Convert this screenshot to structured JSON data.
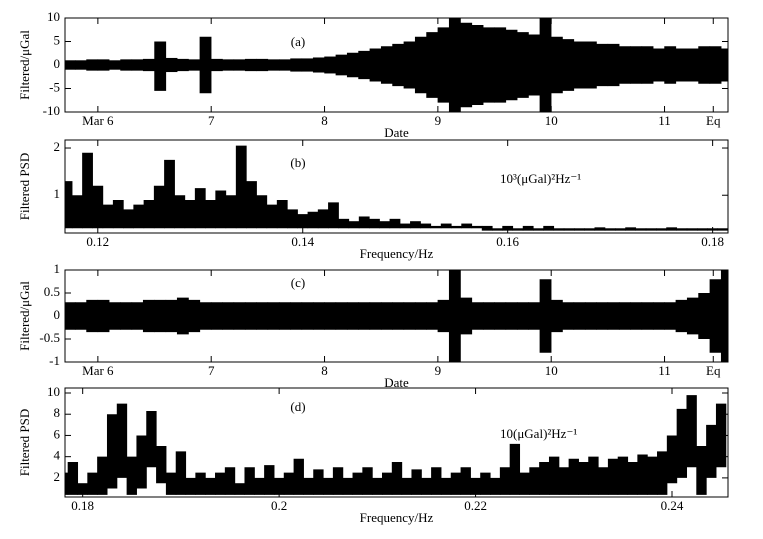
{
  "chart_data": [
    {
      "type": "band",
      "annotation": "(a)",
      "ylabel": "Filtered/μGal",
      "xlabel": "Date",
      "color": "#000000",
      "xlim": [
        5.71,
        11.56
      ],
      "ylim": [
        -10,
        10
      ],
      "yticks": [
        -10,
        -5,
        0,
        5,
        10
      ],
      "xticks": [
        {
          "value": 6,
          "label": "Mar 6"
        },
        7,
        8,
        9,
        10,
        11,
        {
          "value": 11.43,
          "label": "Eq"
        }
      ],
      "x": [
        5.75,
        5.85,
        5.95,
        6.05,
        6.15,
        6.25,
        6.35,
        6.45,
        6.55,
        6.65,
        6.75,
        6.85,
        6.95,
        7.05,
        7.15,
        7.25,
        7.35,
        7.45,
        7.55,
        7.65,
        7.75,
        7.85,
        7.95,
        8.05,
        8.15,
        8.25,
        8.35,
        8.45,
        8.55,
        8.65,
        8.75,
        8.85,
        8.95,
        9.05,
        9.15,
        9.25,
        9.35,
        9.45,
        9.55,
        9.65,
        9.75,
        9.85,
        9.95,
        10.05,
        10.15,
        10.25,
        10.35,
        10.45,
        10.55,
        10.65,
        10.75,
        10.85,
        10.95,
        11.05,
        11.15,
        11.25,
        11.35,
        11.45,
        11.55
      ],
      "upper": [
        1,
        1,
        1.2,
        1.2,
        1,
        1.2,
        1.2,
        1.3,
        5,
        1.5,
        1.3,
        1.2,
        6,
        1.3,
        1.2,
        1.2,
        1.3,
        1.3,
        1.2,
        1.2,
        1.4,
        1.4,
        1.6,
        1.8,
        2.2,
        2.6,
        3,
        3.5,
        4,
        4.5,
        5,
        6,
        7,
        8,
        10,
        9,
        8.5,
        8,
        8,
        7.5,
        7,
        6.5,
        10,
        6,
        5.5,
        5,
        5,
        4.5,
        4.5,
        4,
        4,
        4,
        3.5,
        4,
        3.5,
        3.5,
        4,
        4,
        3.5
      ],
      "lower": [
        -1,
        -1,
        -1.2,
        -1.2,
        -1,
        -1.2,
        -1.2,
        -1.3,
        -5.5,
        -1.5,
        -1.3,
        -1.2,
        -6,
        -1.3,
        -1.2,
        -1.2,
        -1.3,
        -1.3,
        -1.2,
        -1.2,
        -1.4,
        -1.4,
        -1.6,
        -1.8,
        -2.2,
        -2.6,
        -3,
        -3.5,
        -4,
        -4.5,
        -5,
        -6,
        -7,
        -8,
        -10,
        -9,
        -8.5,
        -8,
        -8,
        -7.5,
        -7,
        -6.5,
        -10,
        -6,
        -5.5,
        -5,
        -5,
        -4.5,
        -4.5,
        -4,
        -4,
        -4,
        -3.5,
        -4,
        -3.5,
        -3.5,
        -4,
        -4,
        -3.5
      ]
    },
    {
      "type": "band",
      "annotation": "(b)",
      "unit_label": "10³(μGal)²Hz⁻¹",
      "ylabel": "Filtered PSD",
      "xlabel": "Frequency/Hz",
      "color": "#000000",
      "xlim": [
        0.1168,
        0.1815
      ],
      "ylim": [
        0.2,
        2.17
      ],
      "yticks": [
        1,
        2
      ],
      "xticks": [
        0.12,
        0.14,
        0.16,
        0.18
      ],
      "x": [
        0.117,
        0.118,
        0.119,
        0.12,
        0.121,
        0.122,
        0.123,
        0.124,
        0.125,
        0.126,
        0.127,
        0.128,
        0.129,
        0.13,
        0.131,
        0.132,
        0.133,
        0.134,
        0.135,
        0.136,
        0.137,
        0.138,
        0.139,
        0.14,
        0.141,
        0.142,
        0.143,
        0.144,
        0.145,
        0.146,
        0.147,
        0.148,
        0.149,
        0.15,
        0.151,
        0.152,
        0.153,
        0.154,
        0.155,
        0.156,
        0.157,
        0.158,
        0.159,
        0.16,
        0.161,
        0.162,
        0.163,
        0.164,
        0.165,
        0.166,
        0.167,
        0.168,
        0.169,
        0.17,
        0.171,
        0.172,
        0.173,
        0.174,
        0.175,
        0.176,
        0.177,
        0.178,
        0.179,
        0.18,
        0.181
      ],
      "upper": [
        1.3,
        1.0,
        1.9,
        1.2,
        0.8,
        0.9,
        0.7,
        0.8,
        0.9,
        1.2,
        1.75,
        1.0,
        0.9,
        1.15,
        0.9,
        1.1,
        1.0,
        2.05,
        1.3,
        1.0,
        0.8,
        0.9,
        0.7,
        0.6,
        0.65,
        0.7,
        0.85,
        0.5,
        0.45,
        0.55,
        0.5,
        0.45,
        0.5,
        0.4,
        0.45,
        0.4,
        0.35,
        0.4,
        0.35,
        0.4,
        0.35,
        0.35,
        0.3,
        0.35,
        0.3,
        0.35,
        0.3,
        0.35,
        0.3,
        0.3,
        0.3,
        0.3,
        0.32,
        0.3,
        0.3,
        0.32,
        0.3,
        0.3,
        0.3,
        0.32,
        0.3,
        0.3,
        0.3,
        0.3,
        0.3
      ],
      "lower": [
        0.3,
        0.3,
        0.3,
        0.3,
        0.3,
        0.3,
        0.3,
        0.3,
        0.3,
        0.3,
        0.3,
        0.3,
        0.3,
        0.3,
        0.3,
        0.3,
        0.3,
        0.3,
        0.3,
        0.3,
        0.3,
        0.3,
        0.3,
        0.3,
        0.3,
        0.3,
        0.3,
        0.3,
        0.3,
        0.3,
        0.3,
        0.3,
        0.3,
        0.3,
        0.3,
        0.3,
        0.3,
        0.3,
        0.3,
        0.3,
        0.3,
        0.25,
        0.25,
        0.25,
        0.25,
        0.25,
        0.25,
        0.25,
        0.25,
        0.25,
        0.25,
        0.25,
        0.25,
        0.25,
        0.25,
        0.25,
        0.25,
        0.25,
        0.25,
        0.25,
        0.25,
        0.25,
        0.25,
        0.25,
        0.25
      ]
    },
    {
      "type": "band",
      "annotation": "(c)",
      "ylabel": "Filtered/μGal",
      "xlabel": "Date",
      "color": "#000000",
      "xlim": [
        5.71,
        11.56
      ],
      "ylim": [
        -1,
        1
      ],
      "yticks": [
        -1,
        -0.5,
        0,
        0.5,
        1
      ],
      "xticks": [
        {
          "value": 6,
          "label": "Mar 6"
        },
        7,
        8,
        9,
        10,
        11,
        {
          "value": 11.43,
          "label": "Eq"
        }
      ],
      "x": [
        5.75,
        5.85,
        5.95,
        6.05,
        6.15,
        6.25,
        6.35,
        6.45,
        6.55,
        6.65,
        6.75,
        6.85,
        6.95,
        7.05,
        7.15,
        7.25,
        7.35,
        7.45,
        7.55,
        7.65,
        7.75,
        7.85,
        7.95,
        8.05,
        8.15,
        8.25,
        8.35,
        8.45,
        8.55,
        8.65,
        8.75,
        8.85,
        8.95,
        9.05,
        9.15,
        9.25,
        9.35,
        9.45,
        9.55,
        9.65,
        9.75,
        9.85,
        9.95,
        10.05,
        10.15,
        10.25,
        10.35,
        10.45,
        10.55,
        10.65,
        10.75,
        10.85,
        10.95,
        11.05,
        11.15,
        11.25,
        11.35,
        11.45,
        11.55
      ],
      "upper": [
        0.3,
        0.3,
        0.35,
        0.35,
        0.3,
        0.3,
        0.3,
        0.35,
        0.35,
        0.35,
        0.4,
        0.35,
        0.3,
        0.3,
        0.3,
        0.3,
        0.3,
        0.3,
        0.3,
        0.3,
        0.3,
        0.3,
        0.3,
        0.3,
        0.3,
        0.3,
        0.3,
        0.3,
        0.3,
        0.3,
        0.3,
        0.3,
        0.3,
        0.35,
        1,
        0.4,
        0.3,
        0.3,
        0.3,
        0.3,
        0.3,
        0.3,
        0.8,
        0.35,
        0.3,
        0.3,
        0.3,
        0.3,
        0.3,
        0.3,
        0.3,
        0.3,
        0.3,
        0.3,
        0.35,
        0.4,
        0.5,
        0.8,
        1
      ],
      "lower": [
        -0.3,
        -0.3,
        -0.35,
        -0.35,
        -0.3,
        -0.3,
        -0.3,
        -0.35,
        -0.35,
        -0.35,
        -0.4,
        -0.35,
        -0.3,
        -0.3,
        -0.3,
        -0.3,
        -0.3,
        -0.3,
        -0.3,
        -0.3,
        -0.3,
        -0.3,
        -0.3,
        -0.3,
        -0.3,
        -0.3,
        -0.3,
        -0.3,
        -0.3,
        -0.3,
        -0.3,
        -0.3,
        -0.3,
        -0.35,
        -1,
        -0.4,
        -0.3,
        -0.3,
        -0.3,
        -0.3,
        -0.3,
        -0.3,
        -0.8,
        -0.35,
        -0.3,
        -0.3,
        -0.3,
        -0.3,
        -0.3,
        -0.3,
        -0.3,
        -0.3,
        -0.3,
        -0.3,
        -0.35,
        -0.4,
        -0.5,
        -0.8,
        -1
      ]
    },
    {
      "type": "band",
      "annotation": "(d)",
      "unit_label": "10(μGal)²Hz⁻¹",
      "ylabel": "Filtered PSD",
      "xlabel": "Frequency/Hz",
      "color": "#000000",
      "xlim": [
        0.1782,
        0.2457
      ],
      "ylim": [
        0.2,
        10.47
      ],
      "yticks": [
        2,
        4,
        6,
        8,
        10
      ],
      "xticks": [
        0.18,
        0.2,
        0.22,
        0.24
      ],
      "x": [
        0.178,
        0.179,
        0.18,
        0.181,
        0.182,
        0.183,
        0.184,
        0.185,
        0.186,
        0.187,
        0.188,
        0.189,
        0.19,
        0.191,
        0.192,
        0.193,
        0.194,
        0.195,
        0.196,
        0.197,
        0.198,
        0.199,
        0.2,
        0.201,
        0.202,
        0.203,
        0.204,
        0.205,
        0.206,
        0.207,
        0.208,
        0.209,
        0.21,
        0.211,
        0.212,
        0.213,
        0.214,
        0.215,
        0.216,
        0.217,
        0.218,
        0.219,
        0.22,
        0.221,
        0.222,
        0.223,
        0.224,
        0.225,
        0.226,
        0.227,
        0.228,
        0.229,
        0.23,
        0.231,
        0.232,
        0.233,
        0.234,
        0.235,
        0.236,
        0.237,
        0.238,
        0.239,
        0.24,
        0.241,
        0.242,
        0.243,
        0.244,
        0.245
      ],
      "upper": [
        2.5,
        3.5,
        1.5,
        2.5,
        4,
        8,
        9,
        4,
        6,
        8.3,
        5,
        2.5,
        4.5,
        2,
        2.5,
        2,
        2.5,
        3,
        1.5,
        3,
        2,
        3.2,
        2,
        2.5,
        3.8,
        2,
        2.8,
        2,
        3,
        2,
        2.5,
        3,
        2,
        2.5,
        3.5,
        2,
        2.8,
        2,
        3,
        2,
        2.5,
        3,
        2,
        2.5,
        2,
        3,
        5.2,
        2.5,
        3,
        3.5,
        4,
        3,
        3.8,
        3.5,
        4,
        3,
        3.8,
        4,
        3.5,
        4.2,
        4,
        4.5,
        6,
        8.5,
        9.8,
        5,
        7,
        9
      ],
      "lower": [
        0.4,
        0.4,
        0.4,
        0.4,
        0.4,
        1,
        2,
        0.4,
        1,
        3,
        1.5,
        0.4,
        0.4,
        0.4,
        0.4,
        0.4,
        0.4,
        0.4,
        0.4,
        0.4,
        0.4,
        0.4,
        0.4,
        0.4,
        0.4,
        0.4,
        0.4,
        0.4,
        0.4,
        0.4,
        0.4,
        0.4,
        0.4,
        0.4,
        0.4,
        0.4,
        0.4,
        0.4,
        0.4,
        0.4,
        0.4,
        0.4,
        0.4,
        0.4,
        0.4,
        0.4,
        0.4,
        0.4,
        0.4,
        0.4,
        0.4,
        0.4,
        0.4,
        0.4,
        0.4,
        0.4,
        0.4,
        0.4,
        0.4,
        0.4,
        0.4,
        0.4,
        1.5,
        2,
        3,
        0.4,
        2,
        3
      ]
    }
  ]
}
